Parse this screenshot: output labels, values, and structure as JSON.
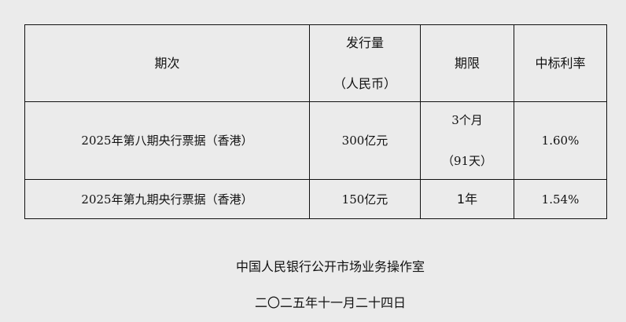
{
  "table": {
    "headers": [
      "期次",
      "发行量",
      "（人民币）",
      "期限",
      "中标利率"
    ],
    "rows": [
      {
        "name": "2025年第八期央行票据（香港）",
        "amount": "300亿元",
        "term_line1": "3个月",
        "term_line2": "（91天）",
        "rate": "1.60%"
      },
      {
        "name": "2025年第九期央行票据（香港）",
        "amount": "150亿元",
        "term": "1年",
        "rate": "1.54%"
      }
    ]
  },
  "footer": {
    "issuer": "中国人民银行公开市场业务操作室",
    "date": "二〇二五年十一月二十四日"
  }
}
